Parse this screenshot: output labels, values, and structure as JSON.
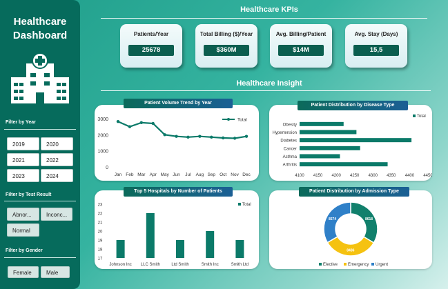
{
  "sidebar": {
    "title_line1": "Healthcare",
    "title_line2": "Dashboard",
    "year_filter_label": "Filter by Year",
    "years": [
      "2019",
      "2020",
      "2021",
      "2022",
      "2023",
      "2024"
    ],
    "test_filter_label": "Filter by Test Result",
    "tests": [
      "Abnor...",
      "Inconc...",
      "Normal"
    ],
    "gender_filter_label": "Filter by Gender",
    "genders": [
      "Female",
      "Male"
    ]
  },
  "header": {
    "kpi_title": "Healthcare KPIs",
    "insight_title": "Healthcare Insight"
  },
  "kpis": [
    {
      "label": "Patients/Year",
      "value": "25678"
    },
    {
      "label": "Total Billing ($)/Year",
      "value": "$360M"
    },
    {
      "label": "Avg. Billing/Patient",
      "value": "$14M"
    },
    {
      "label": "Avg. Stay (Days)",
      "value": "15,5"
    }
  ],
  "colors": {
    "accent": "#0b7a69",
    "sidebar": "#066b5c",
    "elective": "#11806c",
    "emergency": "#f5c211",
    "urgent": "#2f80c8"
  },
  "charts": {
    "trend": {
      "title": "Patient Volume Trend by Year",
      "legend": "Total",
      "chart_data": {
        "type": "line",
        "categories": [
          "Jan",
          "Feb",
          "Mar",
          "Apr",
          "May",
          "Jun",
          "Jul",
          "Aug",
          "Sep",
          "Oct",
          "Nov",
          "Dec"
        ],
        "values": [
          2820,
          2500,
          2750,
          2700,
          2000,
          1900,
          1850,
          1900,
          1850,
          1800,
          1780,
          1900
        ],
        "yticks": [
          "0",
          "1000",
          "2000",
          "3000"
        ],
        "ylim": [
          0,
          3000
        ]
      }
    },
    "disease": {
      "title": "Patient Distribution by Disease Type",
      "legend": "Total",
      "chart_data": {
        "type": "bar",
        "categories": [
          "Obesity",
          "Hypertension",
          "Diabetes",
          "Cancer",
          "Asthma",
          "Arthritis"
        ],
        "values": [
          4220,
          4255,
          4405,
          4265,
          4210,
          4340
        ],
        "xticks": [
          "4100",
          "4150",
          "4200",
          "4250",
          "4300",
          "4350",
          "4400",
          "4450"
        ],
        "xlim": [
          4100,
          4450
        ]
      }
    },
    "hospitals": {
      "title": "Top 5 Hospitals by Number of Patients",
      "legend": "Total",
      "chart_data": {
        "type": "bar",
        "categories": [
          "Johnson Inc",
          "LLC Smith",
          "Ltd Smith",
          "Smith Inc",
          "Smith Ltd"
        ],
        "values": [
          19,
          22,
          19,
          20,
          19
        ],
        "yticks": [
          "17",
          "18",
          "19",
          "20",
          "21",
          "22",
          "23"
        ],
        "ylim": [
          17,
          23
        ]
      }
    },
    "admission": {
      "title": "Patient Distribution by Admission Type",
      "chart_data": {
        "type": "pie",
        "categories": [
          "Elective",
          "Emergency",
          "Urgent"
        ],
        "values": [
          8618,
          8486,
          8574
        ],
        "labels": [
          "8618",
          "8486",
          "8574"
        ]
      }
    }
  }
}
